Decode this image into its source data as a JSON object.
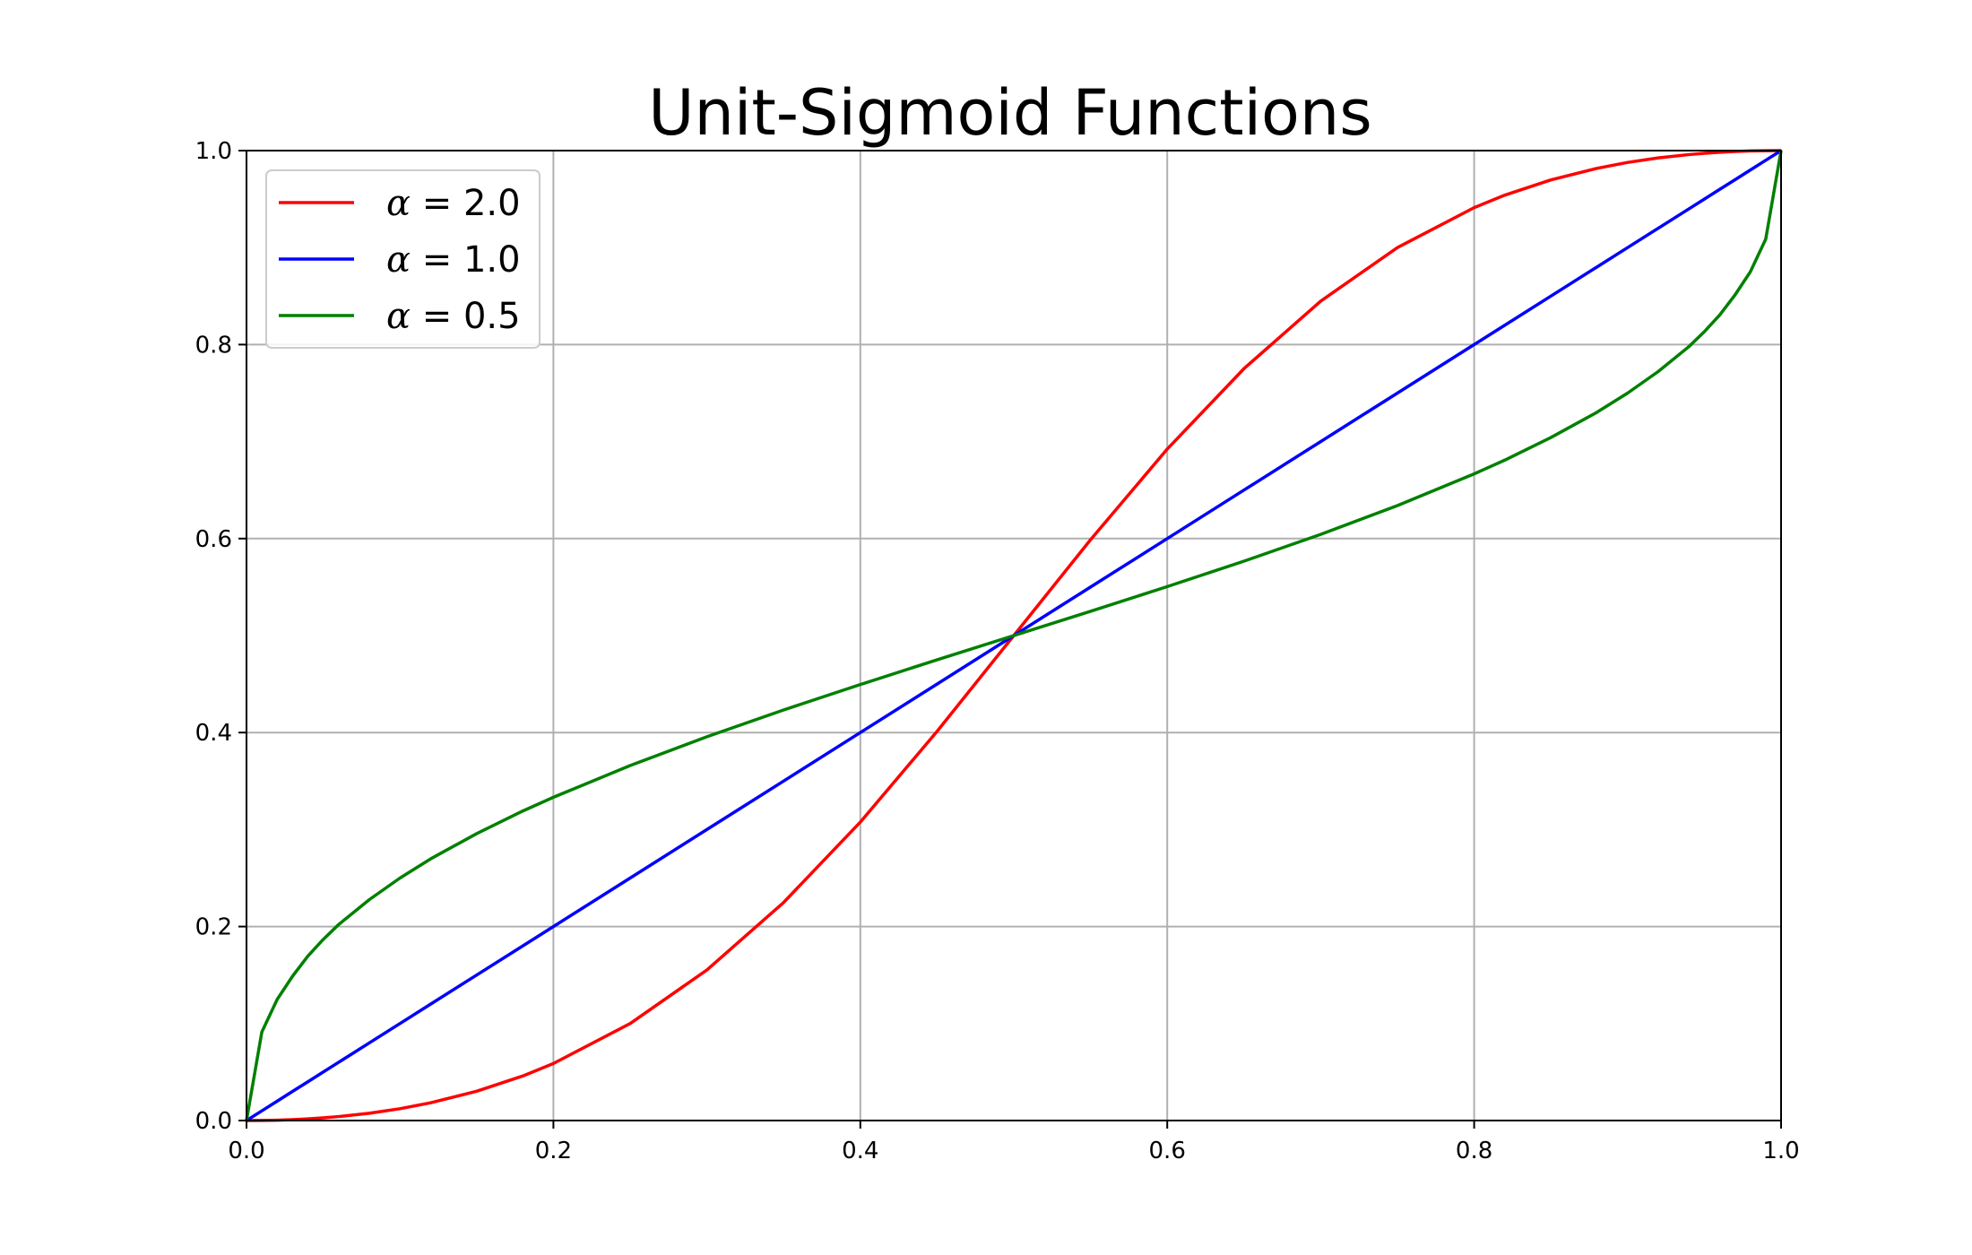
{
  "chart_data": {
    "type": "line",
    "title": "Unit-Sigmoid Functions",
    "xlabel": "",
    "ylabel": "",
    "xlim": [
      0.0,
      1.0
    ],
    "ylim": [
      0.0,
      1.0
    ],
    "xticks": [
      "0.0",
      "0.2",
      "0.4",
      "0.6",
      "0.8",
      "1.0"
    ],
    "yticks": [
      "0.0",
      "0.2",
      "0.4",
      "0.6",
      "0.8",
      "1.0"
    ],
    "grid": true,
    "legend_position": "top-left",
    "x": [
      0.0,
      0.01,
      0.02,
      0.03,
      0.04,
      0.05,
      0.06,
      0.08,
      0.1,
      0.12,
      0.15,
      0.18,
      0.2,
      0.25,
      0.3,
      0.35,
      0.4,
      0.45,
      0.5,
      0.55,
      0.6,
      0.65,
      0.7,
      0.75,
      0.8,
      0.82,
      0.85,
      0.88,
      0.9,
      0.92,
      0.94,
      0.95,
      0.96,
      0.97,
      0.98,
      0.99,
      1.0
    ],
    "series": [
      {
        "name": "2.0",
        "color": "#ff0000",
        "values": [
          0.0,
          0.0001,
          0.0004,
          0.0009,
          0.0017,
          0.0028,
          0.0041,
          0.0075,
          0.0122,
          0.0183,
          0.0302,
          0.0459,
          0.0588,
          0.1,
          0.1552,
          0.2248,
          0.3077,
          0.4012,
          0.5,
          0.5988,
          0.6923,
          0.7752,
          0.8448,
          0.9,
          0.9412,
          0.9541,
          0.9698,
          0.9817,
          0.9878,
          0.9925,
          0.9959,
          0.9972,
          0.9983,
          0.9991,
          0.9996,
          0.9999,
          1.0
        ]
      },
      {
        "name": "1.0",
        "color": "#0000ff",
        "values": [
          0.0,
          0.01,
          0.02,
          0.03,
          0.04,
          0.05,
          0.06,
          0.08,
          0.1,
          0.12,
          0.15,
          0.18,
          0.2,
          0.25,
          0.3,
          0.35,
          0.4,
          0.45,
          0.5,
          0.55,
          0.6,
          0.65,
          0.7,
          0.75,
          0.8,
          0.82,
          0.85,
          0.88,
          0.9,
          0.92,
          0.94,
          0.95,
          0.96,
          0.97,
          0.98,
          0.99,
          1.0
        ]
      },
      {
        "name": "0.5",
        "color": "#008000",
        "values": [
          0.0,
          0.0913,
          0.1249,
          0.1488,
          0.1695,
          0.1867,
          0.202,
          0.2277,
          0.25,
          0.2698,
          0.2958,
          0.3191,
          0.3333,
          0.366,
          0.3957,
          0.4233,
          0.4495,
          0.475,
          0.5,
          0.525,
          0.5505,
          0.5767,
          0.6043,
          0.634,
          0.6667,
          0.6809,
          0.7042,
          0.7302,
          0.75,
          0.7723,
          0.798,
          0.8133,
          0.8305,
          0.8512,
          0.8751,
          0.9087,
          1.0
        ]
      }
    ]
  },
  "legend": {
    "symbol": "α",
    "separator": " = "
  }
}
